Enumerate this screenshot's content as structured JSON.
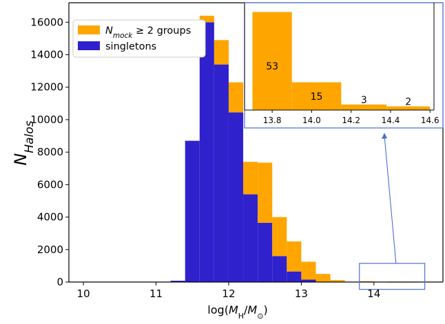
{
  "chart_data": [
    {
      "type": "bar",
      "variant": "stacked-histogram",
      "xlabel": "log(M_H/M_⊙)",
      "ylabel": "N_Halos",
      "xlim": [
        9.8,
        14.95
      ],
      "ylim": [
        0,
        17200
      ],
      "xticks": [
        10,
        11,
        12,
        13,
        14
      ],
      "yticks": [
        0,
        2000,
        4000,
        6000,
        8000,
        10000,
        12000,
        14000,
        16000
      ],
      "grid": false,
      "legend_position": "top-left",
      "bin_edges": [
        11.2,
        11.4,
        11.6,
        11.8,
        12.0,
        12.2,
        12.4,
        12.6,
        12.8,
        13.0,
        13.2,
        13.4,
        13.6,
        13.8,
        14.0,
        14.2,
        14.4,
        14.6
      ],
      "series": [
        {
          "name": "singletons",
          "color": "#2f22cc",
          "values": [
            80,
            8700,
            16000,
            13400,
            10450,
            5400,
            3650,
            1600,
            650,
            150,
            20,
            0,
            0,
            0,
            0,
            0,
            0
          ]
        },
        {
          "name": "N_mock ≥ 2 groups",
          "color": "#ffa500",
          "values": [
            0,
            0,
            400,
            1500,
            1850,
            2000,
            3700,
            2400,
            1850,
            1100,
            480,
            120,
            15,
            53,
            15,
            3,
            2
          ]
        }
      ],
      "zoom_box": {
        "x": [
          13.8,
          14.7
        ],
        "y": [
          -450,
          1150
        ]
      }
    },
    {
      "type": "bar",
      "variant": "inset-histogram",
      "series_name": "N_mock ≥ 2 groups",
      "color": "#ffa500",
      "xlim": [
        13.66,
        14.62
      ],
      "ylim": [
        0,
        58
      ],
      "xticks": [
        "13.8",
        "14.0",
        "14.2",
        "14.4",
        "14.6"
      ],
      "bin_edges": [
        13.7,
        13.9,
        14.15,
        14.38,
        14.6
      ],
      "values": [
        53,
        15,
        3,
        2
      ],
      "labels": [
        "53",
        "15",
        "3",
        "2"
      ]
    }
  ]
}
